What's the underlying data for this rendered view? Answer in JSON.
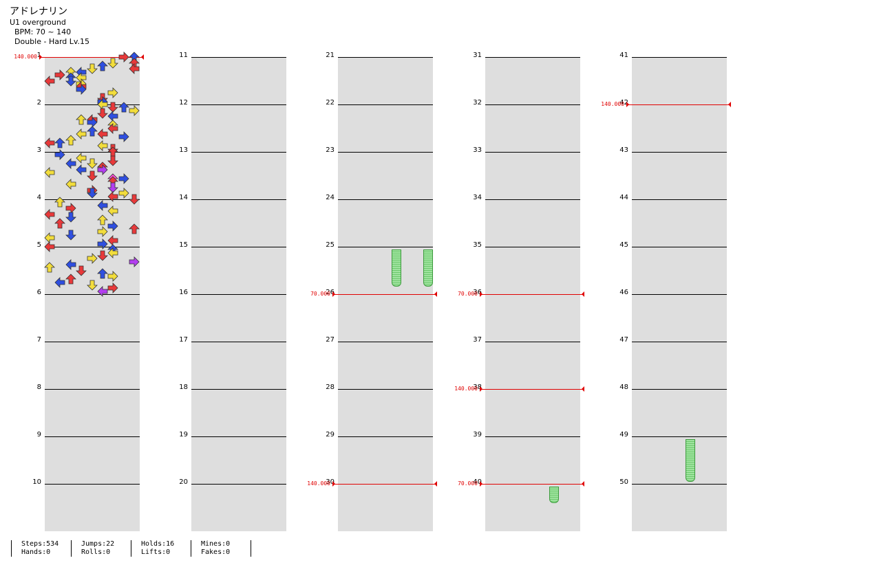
{
  "header": {
    "title": "アドレナリン",
    "artist": "U1 overground",
    "bpm": "BPM: 70 ~ 140",
    "difficulty": "Double - Hard Lv.15"
  },
  "measure_numbers": [
    "1",
    "2",
    "3",
    "4",
    "5",
    "6",
    "7",
    "8",
    "9",
    "10",
    "11",
    "12",
    "13",
    "14",
    "15",
    "16",
    "17",
    "18",
    "19",
    "20",
    "21",
    "22",
    "23",
    "24",
    "25",
    "26",
    "27",
    "28",
    "29",
    "30",
    "31",
    "32",
    "33",
    "34",
    "35",
    "36",
    "37",
    "38",
    "39",
    "40",
    "41",
    "42",
    "43",
    "44",
    "45",
    "46",
    "47",
    "48",
    "49",
    "50"
  ],
  "bpm_changes": [
    {
      "label": "140.000",
      "measure": 1
    },
    {
      "label": "70.000",
      "measure": 26
    },
    {
      "label": "140.000",
      "measure": 30
    },
    {
      "label": "70.000",
      "measure": 36
    },
    {
      "label": "140.000",
      "measure": 38
    },
    {
      "label": "70.000",
      "measure": 40
    },
    {
      "label": "140.000",
      "measure": 42
    }
  ],
  "colors": {
    "quarter": "#e8393a",
    "eighth": "#2f4fe0",
    "sixteenth": "#f2dd3c",
    "twelfth": "#b33ef0",
    "twentyfourth": "#ff4fd8",
    "thirtysecond": "#f08a2a",
    "hold": "#73cc73",
    "bpm": "#e00000",
    "band": "#dedede"
  },
  "stats": [
    {
      "label": "Steps:534"
    },
    {
      "label": "Hands:0"
    },
    {
      "label": "Jumps:22"
    },
    {
      "label": "Rolls:0"
    },
    {
      "label": "Holds:16"
    },
    {
      "label": "Lifts:0"
    },
    {
      "label": "Mines:0"
    },
    {
      "label": "Fakes:0"
    }
  ],
  "notes": [
    [
      1,
      0,
      7,
      "r",
      "red"
    ],
    [
      1,
      0,
      8,
      "u",
      "blue"
    ],
    [
      1,
      4,
      6,
      "d",
      "yellow"
    ],
    [
      1,
      4,
      8,
      "u",
      "red"
    ],
    [
      1,
      6,
      5,
      "u",
      "blue"
    ],
    [
      1,
      8,
      4,
      "d",
      "yellow"
    ],
    [
      1,
      8,
      8,
      "l",
      "red"
    ],
    [
      1,
      10,
      3,
      "l",
      "blue"
    ],
    [
      1,
      10,
      2,
      "u",
      "yellow"
    ],
    [
      1,
      12,
      1,
      "r",
      "red"
    ],
    [
      1,
      14,
      2,
      "u",
      "blue"
    ],
    [
      1,
      14,
      3,
      "l",
      "yellow"
    ],
    [
      1,
      16,
      0,
      "l",
      "red"
    ],
    [
      1,
      16,
      2,
      "d",
      "blue"
    ],
    [
      1,
      18,
      3,
      "r",
      "yellow"
    ],
    [
      1,
      20,
      3,
      "l",
      "red"
    ],
    [
      1,
      22,
      3,
      "r",
      "blue"
    ],
    [
      1,
      24,
      6,
      "r",
      "yellow"
    ],
    [
      1,
      28,
      5,
      "d",
      "red"
    ],
    [
      1,
      30,
      5,
      "r",
      "blue"
    ],
    [
      2,
      0,
      5,
      "l",
      "yellow"
    ],
    [
      2,
      2,
      6,
      "d",
      "red"
    ],
    [
      2,
      2,
      7,
      "u",
      "blue"
    ],
    [
      2,
      4,
      8,
      "r",
      "yellow"
    ],
    [
      2,
      6,
      5,
      "d",
      "red"
    ],
    [
      2,
      8,
      6,
      "l",
      "blue"
    ],
    [
      2,
      10,
      3,
      "u",
      "yellow"
    ],
    [
      2,
      10,
      4,
      "l",
      "red"
    ],
    [
      2,
      12,
      4,
      "r",
      "blue"
    ],
    [
      2,
      14,
      6,
      "u",
      "yellow"
    ],
    [
      2,
      16,
      6,
      "l",
      "red"
    ],
    [
      2,
      18,
      4,
      "u",
      "blue"
    ],
    [
      2,
      20,
      3,
      "l",
      "yellow"
    ],
    [
      2,
      20,
      5,
      "l",
      "red"
    ],
    [
      2,
      22,
      7,
      "r",
      "blue"
    ],
    [
      2,
      24,
      2,
      "u",
      "yellow"
    ],
    [
      2,
      26,
      0,
      "l",
      "red"
    ],
    [
      2,
      26,
      1,
      "u",
      "blue"
    ],
    [
      2,
      28,
      5,
      "l",
      "yellow"
    ],
    [
      2,
      30,
      6,
      "d",
      "red"
    ],
    [
      3,
      0,
      6,
      "u",
      "red"
    ],
    [
      3,
      2,
      1,
      "r",
      "blue"
    ],
    [
      3,
      4,
      3,
      "l",
      "yellow"
    ],
    [
      3,
      6,
      6,
      "d",
      "red"
    ],
    [
      3,
      8,
      2,
      "l",
      "blue"
    ],
    [
      3,
      8,
      4,
      "d",
      "yellow"
    ],
    [
      3,
      10,
      5,
      "u",
      "red"
    ],
    [
      3,
      12,
      5,
      "r",
      "purple"
    ],
    [
      3,
      12,
      3,
      "l",
      "blue"
    ],
    [
      3,
      14,
      0,
      "l",
      "yellow"
    ],
    [
      3,
      16,
      4,
      "d",
      "red"
    ],
    [
      3,
      18,
      6,
      "u",
      "pink"
    ],
    [
      3,
      18,
      7,
      "r",
      "blue"
    ],
    [
      3,
      20,
      6,
      "u",
      "red"
    ],
    [
      3,
      22,
      2,
      "l",
      "yellow"
    ],
    [
      3,
      24,
      6,
      "d",
      "purple"
    ],
    [
      3,
      26,
      4,
      "r",
      "red"
    ],
    [
      3,
      28,
      4,
      "d",
      "blue"
    ],
    [
      3,
      28,
      7,
      "r",
      "yellow"
    ],
    [
      3,
      30,
      6,
      "l",
      "red"
    ],
    [
      4,
      0,
      8,
      "d",
      "red"
    ],
    [
      4,
      2,
      1,
      "u",
      "yellow"
    ],
    [
      4,
      4,
      5,
      "l",
      "blue"
    ],
    [
      4,
      6,
      2,
      "r",
      "red"
    ],
    [
      4,
      8,
      6,
      "l",
      "yellow"
    ],
    [
      4,
      10,
      0,
      "l",
      "red"
    ],
    [
      4,
      12,
      2,
      "d",
      "blue"
    ],
    [
      4,
      14,
      5,
      "u",
      "yellow"
    ],
    [
      4,
      16,
      1,
      "u",
      "red"
    ],
    [
      4,
      18,
      6,
      "r",
      "blue"
    ],
    [
      4,
      20,
      8,
      "u",
      "red"
    ],
    [
      4,
      22,
      5,
      "r",
      "yellow"
    ],
    [
      4,
      24,
      2,
      "d",
      "blue"
    ],
    [
      4,
      26,
      0,
      "l",
      "yellow"
    ],
    [
      4,
      28,
      6,
      "l",
      "red"
    ],
    [
      4,
      30,
      5,
      "r",
      "blue"
    ],
    [
      5,
      0,
      0,
      "l",
      "red"
    ],
    [
      5,
      2,
      6,
      "u",
      "blue"
    ],
    [
      5,
      4,
      6,
      "l",
      "yellow"
    ],
    [
      5,
      6,
      5,
      "d",
      "red"
    ],
    [
      5,
      8,
      4,
      "r",
      "yellow"
    ],
    [
      5,
      10,
      8,
      "r",
      "purple"
    ],
    [
      5,
      12,
      2,
      "l",
      "blue"
    ],
    [
      5,
      14,
      0,
      "u",
      "yellow"
    ],
    [
      5,
      16,
      3,
      "d",
      "red"
    ],
    [
      5,
      18,
      5,
      "u",
      "blue"
    ],
    [
      5,
      20,
      6,
      "r",
      "yellow"
    ],
    [
      5,
      22,
      2,
      "u",
      "red"
    ],
    [
      5,
      24,
      1,
      "l",
      "blue"
    ],
    [
      5,
      26,
      4,
      "d",
      "yellow"
    ],
    [
      5,
      28,
      6,
      "r",
      "red"
    ],
    [
      5,
      30,
      5,
      "l",
      "purple"
    ]
  ]
}
